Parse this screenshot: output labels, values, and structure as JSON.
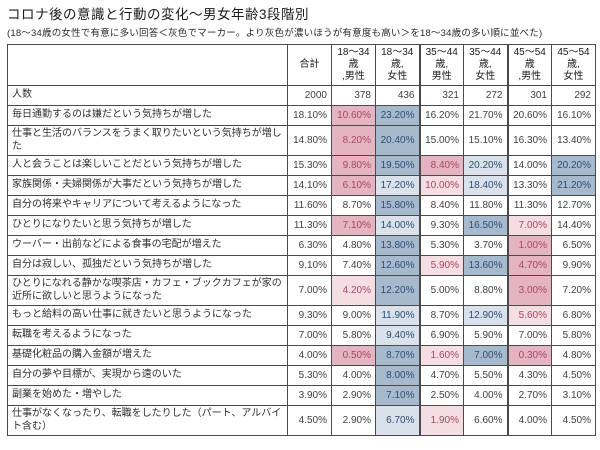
{
  "title": "コロナ後の意識と行動の変化～男女年齢3段階別",
  "subtitle": "(18～34歳の女性で有意に多い回答＜灰色でマーカー。より灰色が濃いほうが有意度も高い＞を18～34歳の多い順に並べた)",
  "chart_data": {
    "type": "table",
    "columns": [
      "合計",
      "18～34歳\n,男性",
      "18～34歳,\n女性",
      "35～44歳,\n男性",
      "35～44歳,\n女性",
      "45～54歳\n,男性",
      "45～54歳,\n女性"
    ],
    "group_separators": [
      3,
      5
    ],
    "highlight_legend": {
      "b": "significantly high (strong)",
      "lb": "significantly high (light)",
      "p": "significantly low (strong)",
      "lp": "significantly low (light)"
    },
    "colors": {
      "sig_high_bg": "#a7bacd",
      "sig_high_bg_light": "#d9e1ea",
      "sig_high_text": "#2d4d75",
      "sig_low_bg": "#e4b4c2",
      "sig_low_bg_light": "#f4dde3",
      "sig_low_text": "#a84868",
      "border": "#4a4a4a"
    },
    "rows": [
      {
        "label": "人数",
        "values": [
          "2000",
          "378",
          "436",
          "321",
          "272",
          "301",
          "292"
        ],
        "highlights": [
          "",
          "",
          "",
          "",
          "",
          "",
          ""
        ]
      },
      {
        "label": "毎日通勤するのは嫌だという気持ちが増した",
        "values": [
          "18.10%",
          "10.60%",
          "23.20%",
          "16.20%",
          "21.70%",
          "20.60%",
          "16.10%"
        ],
        "highlights": [
          "",
          "p",
          "b",
          "",
          "",
          "",
          ""
        ]
      },
      {
        "label": "仕事と生活のバランスをうまく取りたいという気持ちが増した",
        "values": [
          "14.80%",
          "8.20%",
          "20.40%",
          "15.00%",
          "15.10%",
          "16.30%",
          "13.40%"
        ],
        "highlights": [
          "",
          "p",
          "b",
          "",
          "",
          "",
          ""
        ]
      },
      {
        "label": "人と会うことは楽しいことだという気持ちが増した",
        "values": [
          "15.30%",
          "9.80%",
          "19.50%",
          "8.40%",
          "20.20%",
          "14.00%",
          "20.20%"
        ],
        "highlights": [
          "",
          "p",
          "b",
          "p",
          "lb",
          "",
          "b"
        ]
      },
      {
        "label": "家族関係・夫婦関係が大事だという気持ちが増した",
        "values": [
          "14.10%",
          "6.10%",
          "17.20%",
          "10.00%",
          "18.40%",
          "13.30%",
          "21.20%"
        ],
        "highlights": [
          "",
          "p",
          "lb",
          "lp",
          "lb",
          "",
          "b"
        ]
      },
      {
        "label": "自分の将来やキャリアについて考えるようになった",
        "values": [
          "11.60%",
          "8.70%",
          "15.80%",
          "8.40%",
          "11.80%",
          "11.30%",
          "12.70%"
        ],
        "highlights": [
          "",
          "",
          "b",
          "",
          "",
          "",
          ""
        ]
      },
      {
        "label": "ひとりになりたいと思う気持ちが増した",
        "values": [
          "11.30%",
          "7.10%",
          "14.00%",
          "9.30%",
          "16.50%",
          "7.00%",
          "14.40%"
        ],
        "highlights": [
          "",
          "p",
          "lb",
          "",
          "b",
          "lp",
          ""
        ]
      },
      {
        "label": "ウーバー・出前などによる食事の宅配が増えた",
        "values": [
          "6.30%",
          "4.80%",
          "13.80%",
          "5.30%",
          "3.70%",
          "1.00%",
          "6.50%"
        ],
        "highlights": [
          "",
          "",
          "b",
          "",
          "",
          "p",
          ""
        ]
      },
      {
        "label": "自分は寂しい、孤独だという気持ちが増した",
        "values": [
          "9.10%",
          "7.40%",
          "12.60%",
          "5.90%",
          "13.60%",
          "4.70%",
          "9.90%"
        ],
        "highlights": [
          "",
          "",
          "b",
          "lp",
          "b",
          "p",
          ""
        ]
      },
      {
        "label": "ひとりになれる静かな喫茶店・カフェ・ブックカフェが家の近所に欲しいと思うようになった",
        "values": [
          "7.00%",
          "4.20%",
          "12.20%",
          "5.00%",
          "8.80%",
          "3.00%",
          "7.20%"
        ],
        "highlights": [
          "",
          "lp",
          "b",
          "",
          "",
          "p",
          ""
        ]
      },
      {
        "label": "もっと給料の高い仕事に就きたいと思うようになった",
        "values": [
          "9.30%",
          "9.00%",
          "11.90%",
          "8.70%",
          "12.90%",
          "5.60%",
          "6.80%"
        ],
        "highlights": [
          "",
          "",
          "lb",
          "",
          "lb",
          "lp",
          ""
        ]
      },
      {
        "label": "転職を考えるようになった",
        "values": [
          "7.00%",
          "5.80%",
          "9.40%",
          "6.90%",
          "5.90%",
          "7.00%",
          "5.80%"
        ],
        "highlights": [
          "",
          "",
          "lb",
          "",
          "",
          "",
          ""
        ]
      },
      {
        "label": "基礎化粧品の購入金額が増えた",
        "values": [
          "4.00%",
          "0.50%",
          "8.70%",
          "1.60%",
          "7.00%",
          "0.30%",
          "4.80%"
        ],
        "highlights": [
          "",
          "p",
          "b",
          "lp",
          "b",
          "p",
          ""
        ]
      },
      {
        "label": "自分の夢や目標が、実現から遠のいた",
        "values": [
          "5.30%",
          "4.00%",
          "8.00%",
          "4.70%",
          "5.50%",
          "4.30%",
          "4.50%"
        ],
        "highlights": [
          "",
          "",
          "b",
          "",
          "",
          "",
          ""
        ]
      },
      {
        "label": "副業を始めた・増やした",
        "values": [
          "3.90%",
          "2.90%",
          "7.10%",
          "2.50%",
          "4.00%",
          "2.70%",
          "3.10%"
        ],
        "highlights": [
          "",
          "",
          "b",
          "",
          "",
          "",
          ""
        ]
      },
      {
        "label": "仕事がなくなったり、転職をしたりした（パート、アルバイト含む）",
        "values": [
          "4.50%",
          "2.90%",
          "6.70%",
          "1.90%",
          "6.60%",
          "4.00%",
          "4.50%"
        ],
        "highlights": [
          "",
          "",
          "lb",
          "lp",
          "",
          "",
          ""
        ]
      }
    ]
  }
}
